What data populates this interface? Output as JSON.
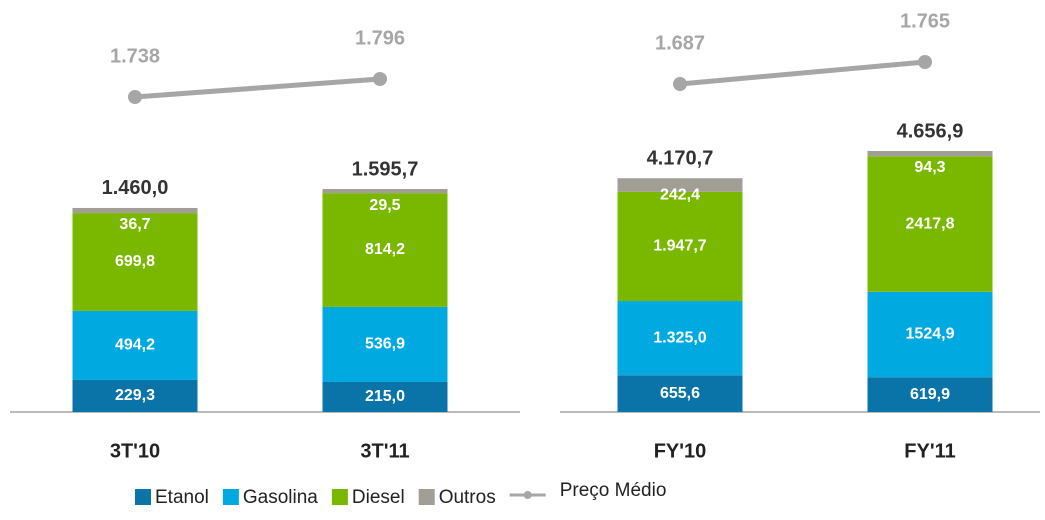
{
  "chart_data": {
    "type": "bar",
    "stacked": true,
    "categories": [
      "3T'10",
      "3T'11",
      "FY'10",
      "FY'11"
    ],
    "series": [
      {
        "name": "Etanol",
        "color": "#0a74a8",
        "values": [
          229.3,
          215.0,
          655.6,
          619.9
        ],
        "value_labels": [
          "229,3",
          "215,0",
          "655,6",
          "619,9"
        ]
      },
      {
        "name": "Gasolina",
        "color": "#00a9e0",
        "values": [
          494.2,
          536.9,
          1325.0,
          1524.9
        ],
        "value_labels": [
          "494,2",
          "536,9",
          "1.325,0",
          "1524,9"
        ]
      },
      {
        "name": "Diesel",
        "color": "#7ab800",
        "values": [
          699.8,
          814.2,
          1947.7,
          2417.8
        ],
        "value_labels": [
          "699,8",
          "814,2",
          "1.947,7",
          "2417,8"
        ]
      },
      {
        "name": "Outros",
        "color": "#a09e95",
        "values": [
          36.7,
          29.5,
          242.4,
          94.3
        ],
        "value_labels": [
          "36,7",
          "29,5",
          "242,4",
          "94,3"
        ]
      }
    ],
    "totals": [
      1460.0,
      1595.7,
      4170.7,
      4656.9
    ],
    "total_labels": [
      "1.460,0",
      "1.595,7",
      "4.170,7",
      "4.656,9"
    ],
    "line": {
      "name": "Preço Médio",
      "color": "#a6a6a6",
      "values": [
        1738,
        1796,
        1687,
        1765
      ],
      "value_labels": [
        "1.738",
        "1.796",
        "1.687",
        "1.765"
      ]
    }
  }
}
